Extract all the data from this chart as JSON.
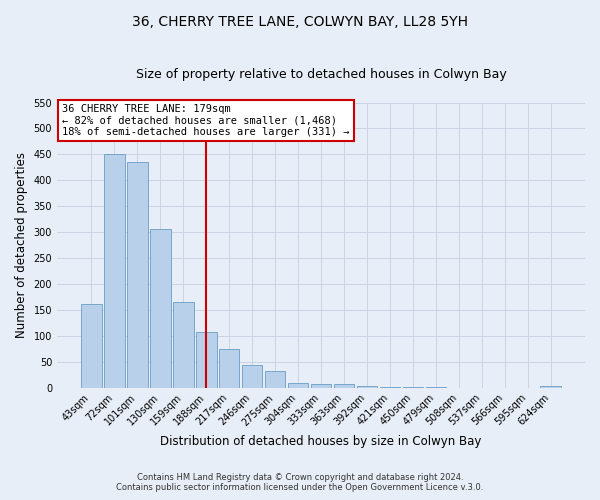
{
  "title": "36, CHERRY TREE LANE, COLWYN BAY, LL28 5YH",
  "subtitle": "Size of property relative to detached houses in Colwyn Bay",
  "xlabel": "Distribution of detached houses by size in Colwyn Bay",
  "ylabel": "Number of detached properties",
  "bar_labels": [
    "43sqm",
    "72sqm",
    "101sqm",
    "130sqm",
    "159sqm",
    "188sqm",
    "217sqm",
    "246sqm",
    "275sqm",
    "304sqm",
    "333sqm",
    "363sqm",
    "392sqm",
    "421sqm",
    "450sqm",
    "479sqm",
    "508sqm",
    "537sqm",
    "566sqm",
    "595sqm",
    "624sqm"
  ],
  "bar_values": [
    162,
    450,
    435,
    307,
    165,
    107,
    75,
    44,
    33,
    10,
    8,
    8,
    3,
    1,
    1,
    1,
    0,
    0,
    0,
    0,
    4
  ],
  "bar_color": "#b8d0ea",
  "bar_edge_color": "#6a9ec5",
  "vline_color": "#cc0000",
  "ylim": [
    0,
    550
  ],
  "yticks": [
    0,
    50,
    100,
    150,
    200,
    250,
    300,
    350,
    400,
    450,
    500,
    550
  ],
  "annotation_title": "36 CHERRY TREE LANE: 179sqm",
  "annotation_line1": "← 82% of detached houses are smaller (1,468)",
  "annotation_line2": "18% of semi-detached houses are larger (331) →",
  "footnote1": "Contains HM Land Registry data © Crown copyright and database right 2024.",
  "footnote2": "Contains public sector information licensed under the Open Government Licence v.3.0.",
  "fig_bg_color": "#e8eef7",
  "plot_bg_color": "#e8eef7",
  "grid_color": "#c5d0e0",
  "title_fontsize": 10,
  "subtitle_fontsize": 9,
  "tick_fontsize": 7,
  "ylabel_fontsize": 8.5,
  "xlabel_fontsize": 8.5,
  "annot_fontsize": 7.5,
  "footnote_fontsize": 6
}
